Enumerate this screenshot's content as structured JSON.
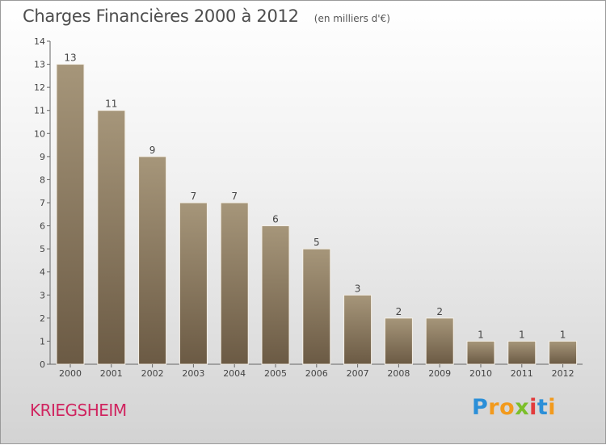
{
  "title": "Charges Financières 2000 à 2012",
  "subtitle": "(en milliers d'€)",
  "commune": "KRIEGSHEIM",
  "logo": {
    "text": "Proxiti",
    "letters": [
      {
        "ch": "P",
        "color": "#2b8fd8"
      },
      {
        "ch": "r",
        "color": "#f29a1d"
      },
      {
        "ch": "o",
        "color": "#f29a1d"
      },
      {
        "ch": "x",
        "color": "#7cbf2a"
      },
      {
        "ch": "i",
        "color": "#e23b3b"
      },
      {
        "ch": "t",
        "color": "#2b8fd8"
      },
      {
        "ch": "i",
        "color": "#f29a1d"
      }
    ]
  },
  "chart_data": {
    "type": "bar",
    "categories": [
      "2000",
      "2001",
      "2002",
      "2003",
      "2004",
      "2005",
      "2006",
      "2007",
      "2008",
      "2009",
      "2010",
      "2011",
      "2012"
    ],
    "values": [
      13,
      11,
      9,
      7,
      7,
      6,
      5,
      3,
      2,
      2,
      1,
      1,
      1
    ],
    "data_labels": [
      "13",
      "11",
      "9",
      "7",
      "7",
      "6",
      "5",
      "3",
      "2",
      "2",
      "1",
      "1",
      "1"
    ],
    "yticks": [
      "0",
      "1",
      "2",
      "3",
      "4",
      "5",
      "6",
      "7",
      "8",
      "9",
      "10",
      "11",
      "12",
      "13",
      "14"
    ],
    "ylim": [
      0,
      14
    ],
    "grid": false,
    "colors": {
      "bar_top": "#a6967a",
      "bar_bottom": "#6b5a44",
      "bar_edge": "#f4efe7"
    }
  }
}
